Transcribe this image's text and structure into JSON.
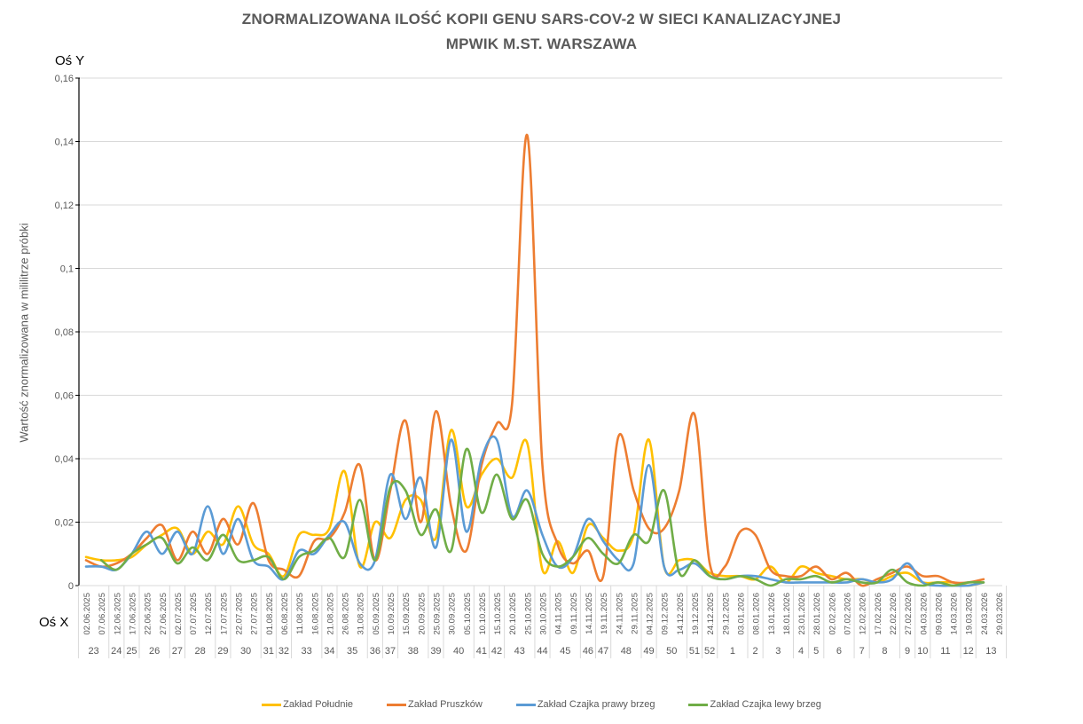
{
  "header": {
    "title_line1": "ZNORMALIZOWANA ILOŚĆ KOPII GENU SARS-COV-2 W SIECI KANALIZACYJNEJ",
    "title_line2": "MPWIK M.ST. WARSZAWA",
    "y_axis_tag": "Oś Y",
    "x_axis_tag": "Oś X"
  },
  "legend": {
    "items": [
      {
        "label": "Zakład Południe",
        "color": "#FFC000"
      },
      {
        "label": "Zakład Pruszków",
        "color": "#ED7D31"
      },
      {
        "label": "Zakład Czajka prawy brzeg",
        "color": "#5B9BD5"
      },
      {
        "label": "Zakład Czajka lewy brzeg",
        "color": "#70AD47"
      }
    ]
  },
  "chart_data": {
    "type": "line",
    "title": "ZNORMALIZOWANA ILOŚĆ KOPII GENU SARS-COV-2 W SIECI KANALIZACYJNEJ MPWIK M.ST. WARSZAWA",
    "xlabel": "Oś X",
    "ylabel": "Wartość znormalizowana w mililitrze próbki",
    "ylim": [
      0,
      0.16
    ],
    "yticks": [
      "0",
      "0,02",
      "0,04",
      "0,06",
      "0,08",
      "0,1",
      "0,12",
      "0,14",
      "0,16"
    ],
    "grid": true,
    "legend_position": "bottom",
    "smoothed": true,
    "x": [
      "02.06.2025",
      "07.06.2025",
      "12.06.2025",
      "17.06.2025",
      "22.06.2025",
      "27.06.2025",
      "02.07.2025",
      "07.07.2025",
      "12.07.2025",
      "17.07.2025",
      "22.07.2025",
      "27.07.2025",
      "01.08.2025",
      "06.08.2025",
      "11.08.2025",
      "16.08.2025",
      "21.08.2025",
      "26.08.2025",
      "31.08.2025",
      "05.09.2025",
      "10.09.2025",
      "15.09.2025",
      "20.09.2025",
      "25.09.2025",
      "30.09.2025",
      "05.10.2025",
      "10.10.2025",
      "15.10.2025",
      "20.10.2025",
      "25.10.2025",
      "30.10.2025",
      "04.11.2025",
      "09.11.2025",
      "14.11.2025",
      "19.11.2025",
      "24.11.2025",
      "29.11.2025",
      "04.12.2025",
      "09.12.2025",
      "14.12.2025",
      "19.12.2025",
      "24.12.2025",
      "29.12.2025",
      "03.01.2026",
      "08.01.2026",
      "13.01.2026",
      "18.01.2026",
      "23.01.2026",
      "28.01.2026",
      "02.02.2026",
      "07.02.2026",
      "12.02.2026",
      "17.02.2026",
      "22.02.2026",
      "27.02.2026",
      "04.03.2026",
      "09.03.2026",
      "14.03.2026",
      "19.03.2026",
      "24.03.2026",
      "29.03.2026"
    ],
    "week_groups": [
      {
        "week": "23",
        "span": 2
      },
      {
        "week": "24",
        "span": 1
      },
      {
        "week": "25",
        "span": 1
      },
      {
        "week": "26",
        "span": 2
      },
      {
        "week": "27",
        "span": 1
      },
      {
        "week": "28",
        "span": 2
      },
      {
        "week": "29",
        "span": 1
      },
      {
        "week": "30",
        "span": 2
      },
      {
        "week": "31",
        "span": 1
      },
      {
        "week": "32",
        "span": 1
      },
      {
        "week": "33",
        "span": 2
      },
      {
        "week": "34",
        "span": 1
      },
      {
        "week": "35",
        "span": 2
      },
      {
        "week": "36",
        "span": 1
      },
      {
        "week": "37",
        "span": 1
      },
      {
        "week": "38",
        "span": 2
      },
      {
        "week": "39",
        "span": 1
      },
      {
        "week": "40",
        "span": 2
      },
      {
        "week": "41",
        "span": 1
      },
      {
        "week": "42",
        "span": 1
      },
      {
        "week": "43",
        "span": 2
      },
      {
        "week": "44",
        "span": 1
      },
      {
        "week": "45",
        "span": 2
      },
      {
        "week": "46",
        "span": 1
      },
      {
        "week": "47",
        "span": 1
      },
      {
        "week": "48",
        "span": 2
      },
      {
        "week": "49",
        "span": 1
      },
      {
        "week": "50",
        "span": 2
      },
      {
        "week": "51",
        "span": 1
      },
      {
        "week": "52",
        "span": 1
      },
      {
        "week": "1",
        "span": 2
      },
      {
        "week": "2",
        "span": 1
      },
      {
        "week": "3",
        "span": 2
      },
      {
        "week": "4",
        "span": 1
      },
      {
        "week": "5",
        "span": 1
      },
      {
        "week": "6",
        "span": 2
      },
      {
        "week": "7",
        "span": 1
      },
      {
        "week": "8",
        "span": 2
      },
      {
        "week": "9",
        "span": 1
      },
      {
        "week": "10",
        "span": 1
      },
      {
        "week": "11",
        "span": 2
      },
      {
        "week": "12",
        "span": 1
      },
      {
        "week": "13",
        "span": 2
      }
    ],
    "series": [
      {
        "name": "Zakład Południe",
        "color": "#FFC000",
        "values": [
          0.009,
          0.008,
          0.008,
          0.009,
          0.013,
          0.016,
          0.018,
          0.01,
          0.017,
          0.013,
          0.025,
          0.013,
          0.01,
          0.003,
          0.016,
          0.016,
          0.018,
          0.036,
          0.006,
          0.02,
          0.015,
          0.027,
          0.027,
          0.015,
          0.049,
          0.025,
          0.035,
          0.04,
          0.034,
          0.045,
          0.005,
          0.014,
          0.004,
          0.019,
          0.015,
          0.011,
          0.016,
          0.046,
          0.006,
          0.008,
          0.008,
          0.004,
          0.003,
          0.003,
          0.002,
          0.006,
          0.001,
          0.006,
          0.004,
          0.003,
          0.002,
          0.002,
          0.001,
          0.003,
          0.004,
          0.001,
          0.001,
          0.001,
          0.0,
          0.001,
          null
        ]
      },
      {
        "name": "Zakład Pruszków",
        "color": "#ED7D31",
        "values": [
          0.008,
          0.006,
          0.007,
          0.01,
          0.015,
          0.019,
          0.008,
          0.017,
          0.01,
          0.021,
          0.013,
          0.026,
          0.008,
          0.005,
          0.003,
          0.014,
          0.015,
          0.023,
          0.038,
          0.008,
          0.03,
          0.052,
          0.02,
          0.055,
          0.025,
          0.011,
          0.038,
          0.051,
          0.057,
          0.142,
          0.038,
          0.013,
          0.007,
          0.011,
          0.003,
          0.047,
          0.03,
          0.018,
          0.018,
          0.03,
          0.054,
          0.007,
          0.006,
          0.017,
          0.016,
          0.005,
          0.003,
          0.003,
          0.006,
          0.002,
          0.004,
          0.0,
          0.002,
          0.004,
          0.006,
          0.003,
          0.003,
          0.001,
          0.001,
          0.002,
          null
        ]
      },
      {
        "name": "Zakład Czajka prawy brzeg",
        "color": "#5B9BD5",
        "values": [
          0.006,
          0.006,
          0.005,
          0.01,
          0.017,
          0.01,
          0.017,
          0.01,
          0.025,
          0.01,
          0.021,
          0.008,
          0.006,
          0.002,
          0.011,
          0.01,
          0.016,
          0.02,
          0.007,
          0.008,
          0.035,
          0.021,
          0.034,
          0.012,
          0.046,
          0.017,
          0.04,
          0.046,
          0.022,
          0.03,
          0.016,
          0.006,
          0.009,
          0.021,
          0.014,
          0.008,
          0.007,
          0.038,
          0.006,
          0.005,
          0.007,
          0.003,
          0.002,
          0.003,
          0.003,
          0.002,
          0.001,
          0.001,
          0.001,
          0.001,
          0.001,
          0.002,
          0.001,
          0.002,
          0.007,
          0.001,
          0.0,
          0.0,
          0.0,
          0.001,
          null
        ]
      },
      {
        "name": "Zakład Czajka lewy brzeg",
        "color": "#70AD47",
        "values": [
          null,
          0.008,
          0.005,
          0.01,
          0.013,
          0.015,
          0.007,
          0.012,
          0.008,
          0.016,
          0.008,
          0.008,
          0.009,
          0.002,
          0.009,
          0.011,
          0.015,
          0.009,
          0.027,
          0.008,
          0.031,
          0.03,
          0.016,
          0.024,
          0.011,
          0.043,
          0.023,
          0.035,
          0.021,
          0.027,
          0.01,
          0.006,
          0.009,
          0.015,
          0.01,
          0.007,
          0.016,
          0.014,
          0.03,
          0.004,
          0.008,
          0.003,
          0.002,
          0.003,
          0.002,
          0.0,
          0.002,
          0.002,
          0.003,
          0.001,
          0.002,
          0.001,
          0.001,
          0.005,
          0.001,
          0.0,
          0.001,
          0.0,
          0.001,
          0.001,
          null
        ]
      }
    ]
  }
}
